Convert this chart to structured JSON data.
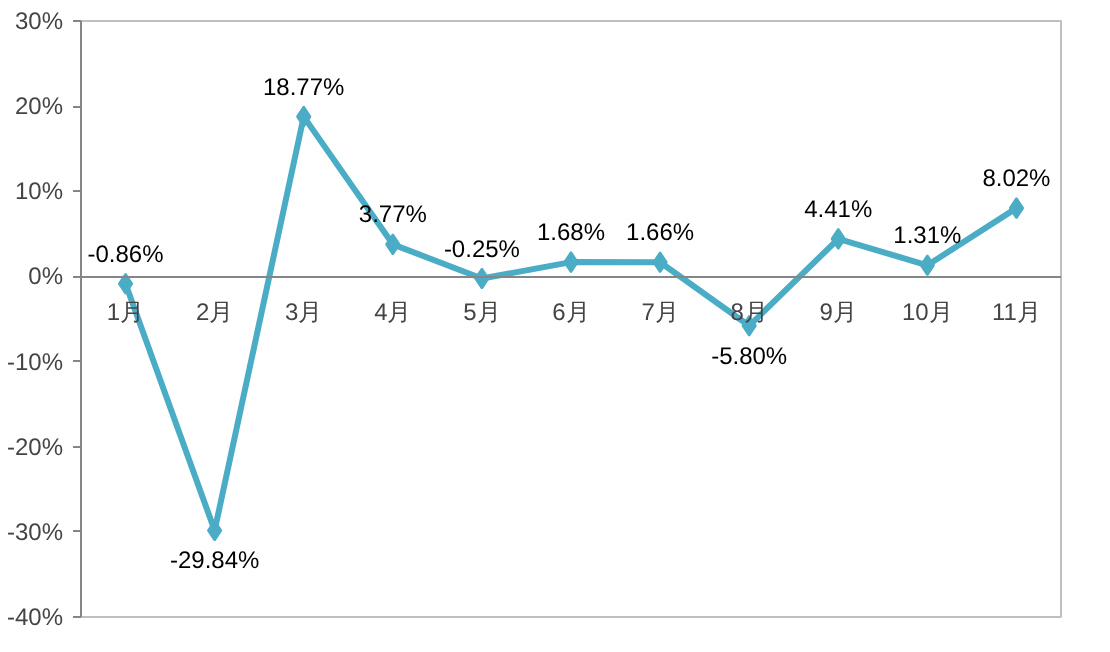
{
  "chart_data": {
    "type": "line",
    "categories": [
      "1月",
      "2月",
      "3月",
      "4月",
      "5月",
      "6月",
      "7月",
      "8月",
      "9月",
      "10月",
      "11月"
    ],
    "series": [
      {
        "color": "#4bacc6",
        "values": [
          -0.86,
          -29.84,
          18.77,
          3.77,
          -0.25,
          1.68,
          1.66,
          -5.8,
          4.41,
          1.31,
          8.02
        ],
        "value_labels": [
          "-0.86%",
          "-29.84%",
          "18.77%",
          "3.77%",
          "-0.25%",
          "1.68%",
          "1.66%",
          "-5.80%",
          "4.41%",
          "1.31%",
          "8.02%"
        ]
      }
    ],
    "ylim": [
      -40,
      30
    ],
    "yticks": [
      {
        "value": -40,
        "label": "-40%"
      },
      {
        "value": -30,
        "label": "-30%"
      },
      {
        "value": -20,
        "label": "-20%"
      },
      {
        "value": -10,
        "label": "-10%"
      },
      {
        "value": 0,
        "label": "0%"
      },
      {
        "value": 10,
        "label": "10%"
      },
      {
        "value": 20,
        "label": "20%"
      },
      {
        "value": 30,
        "label": "30%"
      }
    ],
    "grid": false,
    "marker": "diamond",
    "line_style": "solid"
  }
}
